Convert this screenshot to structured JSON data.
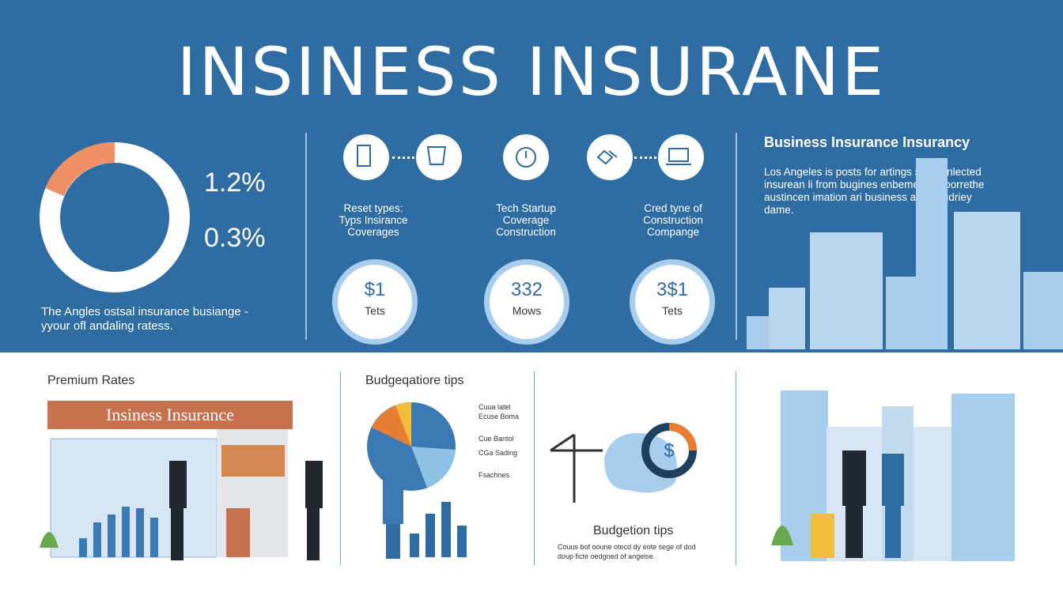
{
  "header": {
    "title": "INSINESS INSURANE"
  },
  "left_panel": {
    "stats": [
      "1.2%",
      "0.3%"
    ],
    "caption": [
      "The Angles ostsal insurance busiange -",
      "yyour ofl andaling ratess."
    ]
  },
  "columns": [
    {
      "label": [
        "Reset types:",
        "Typs Insirance",
        "Coverages"
      ],
      "value": "$1",
      "unit": "Tets"
    },
    {
      "label": [
        "Tech Startup",
        "Coverage",
        "Construction"
      ],
      "value": "332",
      "unit": "Mows"
    },
    {
      "label": [
        "Cred tyne of",
        "Construction",
        "Compange"
      ],
      "value": "3$1",
      "unit": "Tets"
    }
  ],
  "right_panel": {
    "title": "Business Insurance Insurancy",
    "text": [
      "Los Angeles is posts for artings shaptenlected",
      "insurean li from bugines enbemelel to porrethe",
      "austincen imation ari business ares, audriey",
      "dame."
    ]
  },
  "bottom": {
    "premium": {
      "title": "Premium Rates",
      "sign": "Insiness Insurance"
    },
    "budget": {
      "title": "Budgeqatiore tips",
      "pie_labels": [
        "Cuua latel",
        "Ecuse Boma",
        "Cue Bantol",
        "CGa Sading",
        "Fsachnes"
      ]
    },
    "tips": {
      "title": "Budgetion tips",
      "text": [
        "Couus bof ooune otecd dy eote sege of dod",
        "doup ficte oedgned of angelse."
      ]
    }
  }
}
